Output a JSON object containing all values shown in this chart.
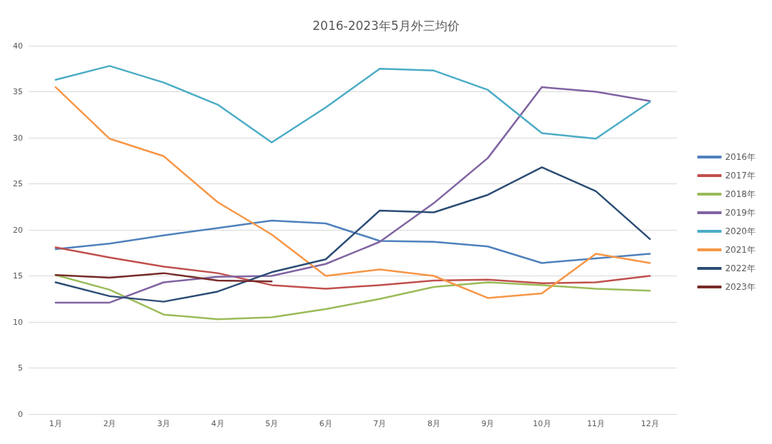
{
  "chart_data": {
    "type": "line",
    "title": "2016-2023年5月外三均价",
    "categories": [
      "1月",
      "2月",
      "3月",
      "4月",
      "5月",
      "6月",
      "7月",
      "8月",
      "9月",
      "10月",
      "11月",
      "12月"
    ],
    "series": [
      {
        "name": "2016年",
        "color": "#4f81bd",
        "values": [
          17.9,
          18.5,
          19.4,
          20.2,
          21.0,
          20.7,
          18.8,
          18.7,
          18.2,
          16.4,
          16.9,
          17.4
        ]
      },
      {
        "name": "2017年",
        "color": "#c0504d",
        "values": [
          18.1,
          17.0,
          16.0,
          15.3,
          14.0,
          13.6,
          14.0,
          14.5,
          14.6,
          14.2,
          14.3,
          15.0
        ]
      },
      {
        "name": "2018年",
        "color": "#9bbb59",
        "values": [
          15.1,
          13.5,
          10.8,
          10.3,
          10.5,
          11.4,
          12.5,
          13.8,
          14.3,
          14.0,
          13.6,
          13.4
        ]
      },
      {
        "name": "2019年",
        "color": "#8064a2",
        "values": [
          12.1,
          12.1,
          14.3,
          14.9,
          15.0,
          16.3,
          18.7,
          22.9,
          27.8,
          35.5,
          35.0,
          34.0
        ]
      },
      {
        "name": "2020年",
        "color": "#4bacc6",
        "values": [
          36.3,
          37.8,
          36.0,
          33.6,
          29.5,
          33.3,
          37.5,
          37.3,
          35.2,
          30.5,
          29.9,
          33.9
        ]
      },
      {
        "name": "2021年",
        "color": "#f79646",
        "values": [
          35.5,
          29.9,
          28.0,
          23.0,
          19.5,
          15.0,
          15.7,
          15.0,
          12.6,
          13.1,
          17.4,
          16.4
        ]
      },
      {
        "name": "2022年",
        "color": "#2c4d75",
        "values": [
          14.3,
          12.8,
          12.2,
          13.3,
          15.4,
          16.8,
          22.1,
          21.9,
          23.8,
          26.8,
          24.2,
          19.0
        ]
      },
      {
        "name": "2023年",
        "color": "#772c2a",
        "values": [
          15.1,
          14.8,
          15.3,
          14.5,
          14.4,
          null,
          null,
          null,
          null,
          null,
          null,
          null
        ]
      }
    ],
    "ylim": [
      0,
      40
    ],
    "yticks": [
      0,
      5,
      10,
      15,
      20,
      25,
      30,
      35,
      40
    ],
    "grid": "y",
    "legend": "right",
    "marker": "none",
    "line_style": "solid"
  }
}
